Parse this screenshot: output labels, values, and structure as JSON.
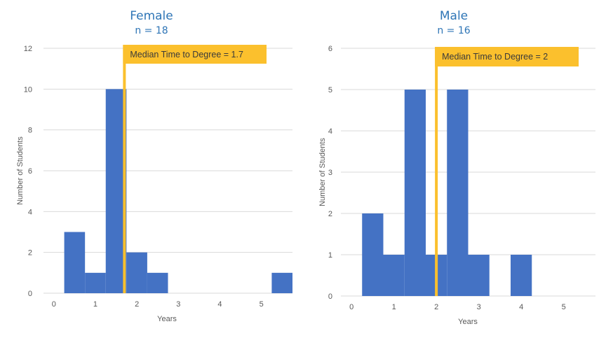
{
  "chart_data": [
    {
      "type": "bar",
      "subtype": "histogram",
      "title": "Female",
      "subtitle": "n = 18",
      "xlabel": "Years",
      "ylabel": "Number  of Students",
      "xlim": [
        -0.25,
        5.75
      ],
      "ylim": [
        0,
        12
      ],
      "xticks": [
        "0",
        "1",
        "2",
        "3",
        "4",
        "5"
      ],
      "xtick_values": [
        0,
        1,
        2,
        3,
        4,
        5
      ],
      "yticks": [
        "0",
        "2",
        "4",
        "6",
        "8",
        "10",
        "12"
      ],
      "ytick_values": [
        0,
        2,
        4,
        6,
        8,
        10,
        12
      ],
      "bin_width": 0.5,
      "bin_centers": [
        0.5,
        1.0,
        1.5,
        2.0,
        2.5,
        3.0,
        3.5,
        4.0,
        4.5,
        5.0,
        5.5
      ],
      "values": [
        3,
        1,
        10,
        2,
        1,
        0,
        0,
        0,
        0,
        0,
        1
      ],
      "grid": true,
      "median": 1.7,
      "annotation": "Median Time to Degree = 1.7",
      "bar_color": "#4472C4",
      "median_color": "#FBC02D"
    },
    {
      "type": "bar",
      "subtype": "histogram",
      "title": "Male",
      "subtitle": "n = 16",
      "xlabel": "Years",
      "ylabel": "Number  of Students",
      "xlim": [
        -0.25,
        5.75
      ],
      "ylim": [
        0,
        6
      ],
      "xticks": [
        "0",
        "1",
        "2",
        "3",
        "4",
        "5"
      ],
      "xtick_values": [
        0,
        1,
        2,
        3,
        4,
        5
      ],
      "yticks": [
        "0",
        "1",
        "2",
        "3",
        "4",
        "5",
        "6"
      ],
      "ytick_values": [
        0,
        1,
        2,
        3,
        4,
        5,
        6
      ],
      "bin_width": 0.5,
      "bin_centers": [
        0.5,
        1.0,
        1.5,
        2.0,
        2.5,
        3.0,
        3.5,
        4.0,
        4.5,
        5.0,
        5.5
      ],
      "values": [
        2,
        1,
        5,
        1,
        5,
        1,
        0,
        1,
        0,
        0,
        0
      ],
      "grid": true,
      "median": 2,
      "annotation": "Median Time to Degree = 2",
      "bar_color": "#4472C4",
      "median_color": "#FBC02D"
    }
  ]
}
